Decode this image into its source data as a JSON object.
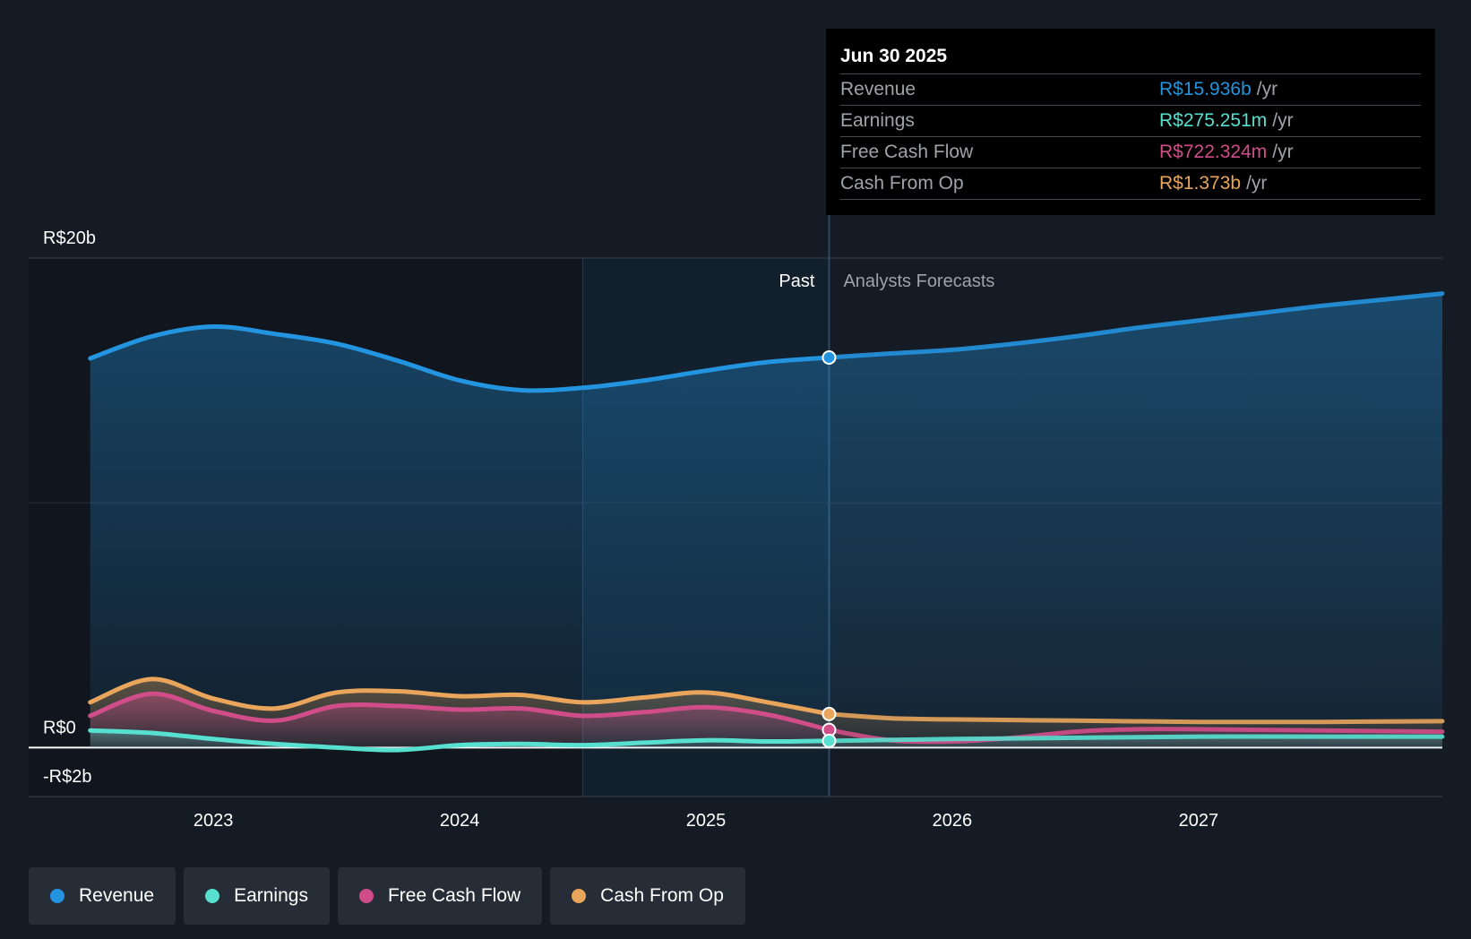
{
  "chart_data": {
    "type": "area",
    "title": "",
    "y_unit": "R$ billions",
    "ylim": [
      -2,
      20
    ],
    "y_ticks": [
      {
        "value": 20,
        "label": "R$20b"
      },
      {
        "value": 0,
        "label": "R$0"
      },
      {
        "value": -2,
        "label": "-R$2b"
      }
    ],
    "x_ticks": [
      {
        "value": 2023,
        "label": "2023"
      },
      {
        "value": 2024,
        "label": "2024"
      },
      {
        "value": 2025,
        "label": "2025"
      },
      {
        "value": 2026,
        "label": "2026"
      },
      {
        "value": 2027,
        "label": "2027"
      }
    ],
    "xlim": [
      2022.25,
      2027.99
    ],
    "past_label": "Past",
    "forecast_label": "Analysts Forecasts",
    "divider_x": 2025.5,
    "highlight_start_x": 2024.5,
    "series": [
      {
        "name": "Revenue",
        "color": "#2394df",
        "x": [
          2022.5,
          2022.75,
          2023.0,
          2023.25,
          2023.5,
          2023.75,
          2024.0,
          2024.25,
          2024.5,
          2024.75,
          2025.0,
          2025.25,
          2025.5,
          2025.75,
          2026.0,
          2026.25,
          2026.5,
          2026.75,
          2027.0,
          2027.25,
          2027.5,
          2027.75,
          2027.99
        ],
        "values": [
          15.9,
          16.8,
          17.2,
          16.9,
          16.5,
          15.8,
          15.0,
          14.6,
          14.7,
          15.0,
          15.4,
          15.75,
          15.936,
          16.1,
          16.25,
          16.5,
          16.8,
          17.15,
          17.45,
          17.75,
          18.05,
          18.3,
          18.55
        ]
      },
      {
        "name": "Earnings",
        "color": "#57e0cf",
        "x": [
          2022.5,
          2022.75,
          2023.0,
          2023.25,
          2023.5,
          2023.75,
          2024.0,
          2024.25,
          2024.5,
          2024.75,
          2025.0,
          2025.25,
          2025.5,
          2026.0,
          2026.5,
          2027.0,
          2027.5,
          2027.99
        ],
        "values": [
          0.7,
          0.6,
          0.35,
          0.15,
          0.0,
          -0.1,
          0.1,
          0.15,
          0.1,
          0.2,
          0.3,
          0.25,
          0.275,
          0.35,
          0.4,
          0.45,
          0.45,
          0.45
        ]
      },
      {
        "name": "Free Cash Flow",
        "color": "#d14d8a",
        "x": [
          2022.5,
          2022.75,
          2023.0,
          2023.25,
          2023.5,
          2023.75,
          2024.0,
          2024.25,
          2024.5,
          2024.75,
          2025.0,
          2025.25,
          2025.5,
          2025.75,
          2026.0,
          2026.25,
          2026.5,
          2026.75,
          2027.0,
          2027.5,
          2027.99
        ],
        "values": [
          1.3,
          2.2,
          1.5,
          1.1,
          1.7,
          1.7,
          1.55,
          1.6,
          1.3,
          1.45,
          1.65,
          1.35,
          0.722,
          0.3,
          0.25,
          0.4,
          0.65,
          0.75,
          0.75,
          0.7,
          0.65
        ]
      },
      {
        "name": "Cash From Op",
        "color": "#e8a55b",
        "x": [
          2022.5,
          2022.75,
          2023.0,
          2023.25,
          2023.5,
          2023.75,
          2024.0,
          2024.25,
          2024.5,
          2024.75,
          2025.0,
          2025.25,
          2025.5,
          2025.75,
          2026.0,
          2026.5,
          2027.0,
          2027.5,
          2027.99
        ],
        "values": [
          1.85,
          2.8,
          2.0,
          1.6,
          2.25,
          2.3,
          2.1,
          2.15,
          1.85,
          2.05,
          2.25,
          1.85,
          1.373,
          1.2,
          1.15,
          1.1,
          1.05,
          1.05,
          1.08
        ]
      }
    ]
  },
  "tooltip": {
    "date": "Jun 30 2025",
    "rows": [
      {
        "label": "Revenue",
        "value": "R$15.936b",
        "unit": "/yr",
        "color": "#2394df"
      },
      {
        "label": "Earnings",
        "value": "R$275.251m",
        "unit": "/yr",
        "color": "#57e0cf"
      },
      {
        "label": "Free Cash Flow",
        "value": "R$722.324m",
        "unit": "/yr",
        "color": "#d14d8a"
      },
      {
        "label": "Cash From Op",
        "value": "R$1.373b",
        "unit": "/yr",
        "color": "#e8a55b"
      }
    ]
  },
  "legend": [
    {
      "label": "Revenue",
      "color": "#2394df"
    },
    {
      "label": "Earnings",
      "color": "#57e0cf"
    },
    {
      "label": "Free Cash Flow",
      "color": "#d14d8a"
    },
    {
      "label": "Cash From Op",
      "color": "#e8a55b"
    }
  ]
}
